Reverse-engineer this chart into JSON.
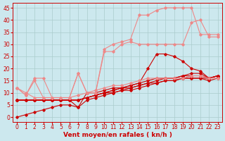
{
  "background_color": "#cce8ee",
  "grid_color": "#aacccc",
  "xlabel": "Vent moyen/en rafales ( kn/h )",
  "xlabel_color": "#cc0000",
  "xlabel_fontsize": 6.5,
  "tick_color": "#cc0000",
  "tick_fontsize": 5.5,
  "xlim": [
    -0.5,
    23.5
  ],
  "ylim": [
    -2,
    47
  ],
  "yticks": [
    0,
    5,
    10,
    15,
    20,
    25,
    30,
    35,
    40,
    45
  ],
  "xticks": [
    0,
    1,
    2,
    3,
    4,
    5,
    6,
    7,
    8,
    9,
    10,
    11,
    12,
    13,
    14,
    15,
    16,
    17,
    18,
    19,
    20,
    21,
    22,
    23
  ],
  "lines": [
    {
      "x": [
        0,
        1,
        2,
        3,
        4,
        5,
        6,
        7,
        8,
        9,
        10,
        11,
        12,
        13,
        14,
        15,
        16,
        17,
        18,
        19,
        20,
        21,
        22,
        23
      ],
      "y": [
        7,
        7,
        7,
        7,
        7,
        7,
        7,
        7,
        8,
        9,
        10,
        10,
        11,
        11,
        12,
        13,
        14,
        15,
        15,
        16,
        16,
        16,
        16,
        17
      ],
      "color": "#cc0000",
      "lw": 0.8,
      "marker": "D",
      "ms": 1.8
    },
    {
      "x": [
        0,
        1,
        2,
        3,
        4,
        5,
        6,
        7,
        8,
        9,
        10,
        11,
        12,
        13,
        14,
        15,
        16,
        17,
        18,
        19,
        20,
        21,
        22,
        23
      ],
      "y": [
        7,
        7,
        7,
        7,
        7,
        7,
        7,
        7,
        8,
        9,
        10,
        11,
        12,
        12,
        13,
        14,
        15,
        16,
        16,
        17,
        17,
        17,
        16,
        17
      ],
      "color": "#cc0000",
      "lw": 0.8,
      "marker": "D",
      "ms": 1.8
    },
    {
      "x": [
        0,
        1,
        2,
        3,
        4,
        5,
        6,
        7,
        8,
        9,
        10,
        11,
        12,
        13,
        14,
        15,
        16,
        17,
        18,
        19,
        20,
        21,
        22,
        23
      ],
      "y": [
        7,
        7,
        7,
        7,
        7,
        7,
        7,
        7,
        8,
        9,
        10,
        11,
        12,
        13,
        14,
        20,
        26,
        26,
        25,
        23,
        20,
        19,
        16,
        17
      ],
      "color": "#cc0000",
      "lw": 0.8,
      "marker": "D",
      "ms": 1.8
    },
    {
      "x": [
        0,
        2,
        3,
        4,
        5,
        6,
        7,
        8,
        9,
        10,
        11,
        12,
        13,
        14,
        15,
        16,
        17,
        18,
        19,
        20,
        21,
        22,
        23
      ],
      "y": [
        7,
        7,
        7,
        7,
        7,
        7,
        4,
        10,
        10,
        11,
        12,
        12,
        13,
        14,
        15,
        16,
        16,
        16,
        17,
        18,
        18,
        16,
        17
      ],
      "color": "#cc0000",
      "lw": 0.8,
      "marker": "D",
      "ms": 1.8
    },
    {
      "x": [
        0,
        1,
        2,
        3,
        4,
        5,
        6,
        7,
        8,
        9,
        10,
        11,
        12,
        13,
        14,
        15,
        16,
        17,
        18,
        19,
        20,
        21,
        22,
        23
      ],
      "y": [
        0,
        1,
        2,
        3,
        4,
        5,
        5,
        4,
        7,
        8,
        9,
        10,
        11,
        12,
        13,
        14,
        14,
        15,
        15,
        16,
        16,
        16,
        15,
        16
      ],
      "color": "#cc0000",
      "lw": 0.8,
      "marker": "D",
      "ms": 1.8
    },
    {
      "x": [
        0,
        1,
        2,
        3,
        4,
        5,
        6,
        7,
        8,
        9,
        10,
        11,
        12,
        13,
        14,
        15,
        16,
        17,
        18,
        19,
        20,
        21,
        22,
        23
      ],
      "y": [
        12,
        10,
        8,
        8,
        8,
        8,
        8,
        9,
        10,
        11,
        12,
        13,
        13,
        14,
        15,
        16,
        16,
        16,
        16,
        16,
        17,
        17,
        16,
        16
      ],
      "color": "#ee8888",
      "lw": 0.8,
      "marker": "D",
      "ms": 1.8
    },
    {
      "x": [
        0,
        1,
        2,
        3,
        4,
        5,
        6,
        7,
        8,
        9,
        10,
        11,
        12,
        13,
        14,
        15,
        16,
        17,
        18,
        19,
        20,
        21,
        22,
        23
      ],
      "y": [
        12,
        9,
        15,
        8,
        8,
        8,
        8,
        18,
        10,
        10,
        27,
        27,
        30,
        31,
        30,
        30,
        30,
        30,
        30,
        30,
        39,
        40,
        33,
        33
      ],
      "color": "#ee8888",
      "lw": 0.8,
      "marker": "D",
      "ms": 1.8
    },
    {
      "x": [
        0,
        1,
        2,
        3,
        4,
        5,
        6,
        7,
        8,
        9,
        10,
        11,
        12,
        13,
        14,
        15,
        16,
        17,
        18,
        19,
        20,
        21,
        22,
        23
      ],
      "y": [
        12,
        9,
        16,
        16,
        8,
        8,
        8,
        18,
        10,
        10,
        28,
        30,
        31,
        32,
        42,
        42,
        44,
        45,
        45,
        45,
        45,
        34,
        34,
        34
      ],
      "color": "#ee8888",
      "lw": 0.8,
      "marker": "D",
      "ms": 1.8
    }
  ]
}
